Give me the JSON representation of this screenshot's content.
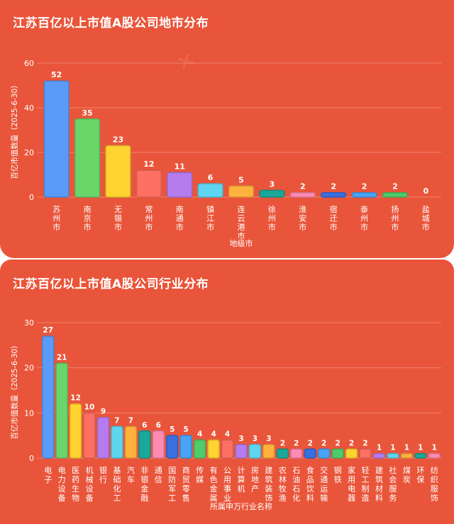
{
  "chart_data": [
    {
      "type": "bar",
      "title": "江苏百亿以上市值A股公司地市分布",
      "xlabel": "地级市",
      "ylabel": "百亿市值数量",
      "ylabel_note": "（2025-6-30）",
      "ylim": [
        0,
        60
      ],
      "yticks": [
        0,
        20,
        40,
        60
      ],
      "categories": [
        "苏州市",
        "南京市",
        "无锡市",
        "常州市",
        "南通市",
        "镇江市",
        "连云港市",
        "徐州市",
        "淮安市",
        "宿迁市",
        "泰州市",
        "扬州市",
        "盐城市"
      ],
      "values": [
        52,
        35,
        23,
        12,
        11,
        6,
        5,
        3,
        2,
        2,
        2,
        2,
        0
      ],
      "colors": [
        "#5b9bf8",
        "#6ad66a",
        "#ffd330",
        "#ff7064",
        "#b57cf0",
        "#5fd5f0",
        "#ffb13d",
        "#1aa89a",
        "#ff8ab4",
        "#3a6fe0",
        "#4aa3f5",
        "#4fcb6b",
        "#ffd330"
      ],
      "grid": true,
      "legend": "none"
    },
    {
      "type": "bar",
      "title": "江苏百亿以上市值A股公司行业分布",
      "xlabel": "所属申万行业名称",
      "ylabel": "百亿市值数量",
      "ylabel_note": "（2025-6-30）",
      "ylim": [
        0,
        30
      ],
      "yticks": [
        0,
        10,
        20,
        30
      ],
      "categories": [
        "电子",
        "电力设备",
        "医药生物",
        "机械设备",
        "银行",
        "基础化工",
        "汽车",
        "非银金融",
        "通信",
        "国防军工",
        "商贸零售",
        "传媒",
        "有色金属",
        "公用事业",
        "计算机",
        "房地产",
        "建筑装饰",
        "农林牧渔",
        "石油石化",
        "食品饮料",
        "交通运输",
        "钢铁",
        "家用电器",
        "轻工制造",
        "建筑材料",
        "社会服务",
        "煤炭",
        "环保",
        "纺织服饰"
      ],
      "values": [
        27,
        21,
        12,
        10,
        9,
        7,
        7,
        6,
        6,
        5,
        5,
        4,
        4,
        4,
        3,
        3,
        3,
        2,
        2,
        2,
        2,
        2,
        2,
        2,
        1,
        1,
        1,
        1,
        1
      ],
      "colors": [
        "#5b9bf8",
        "#6ad66a",
        "#ffd330",
        "#ff7064",
        "#b57cf0",
        "#5fd5f0",
        "#ffb13d",
        "#1aa89a",
        "#ff8ab4",
        "#3a6fe0",
        "#4aa3f5",
        "#4fcb6b",
        "#ffd330",
        "#ff7064",
        "#b57cf0",
        "#5fd5f0",
        "#ffb13d",
        "#1aa89a",
        "#ff8ab4",
        "#3a6fe0",
        "#4aa3f5",
        "#4fcb6b",
        "#ffd330",
        "#ff7064",
        "#b57cf0",
        "#5fd5f0",
        "#ffb13d",
        "#1aa89a",
        "#ff8ab4"
      ],
      "grid": true,
      "legend": "none"
    }
  ]
}
